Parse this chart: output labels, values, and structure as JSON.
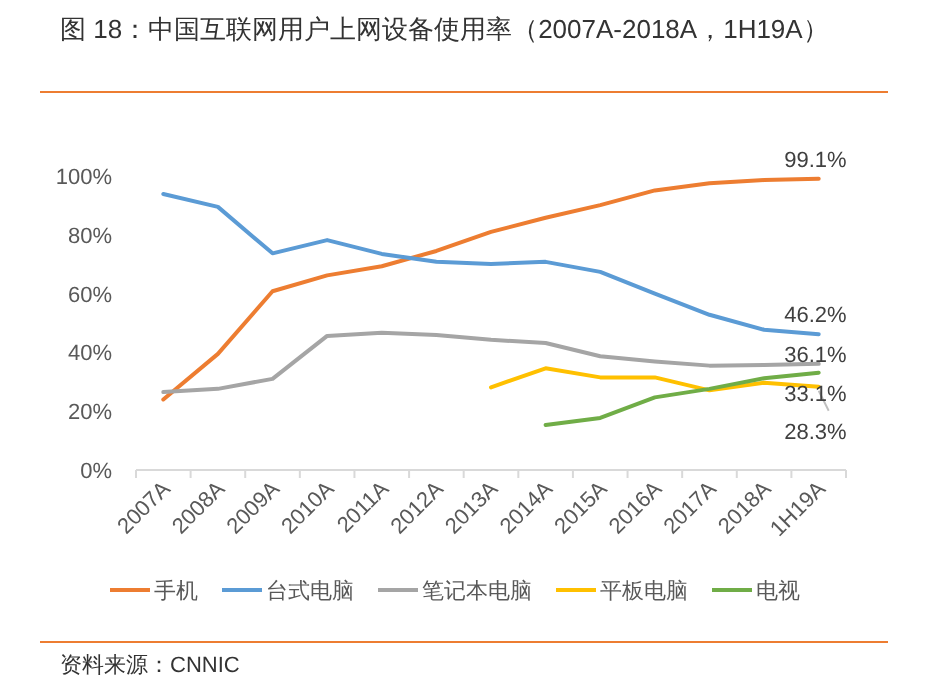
{
  "chart_data": {
    "type": "line",
    "title": "图 18：中国互联网用户上网设备使用率（2007A-2018A，1H19A）",
    "annotations": [
      "资料来源：CNNIC"
    ],
    "categories": [
      "2007A",
      "2008A",
      "2009A",
      "2010A",
      "2011A",
      "2012A",
      "2013A",
      "2014A",
      "2015A",
      "2016A",
      "2017A",
      "2018A",
      "1H19A"
    ],
    "series": [
      {
        "name": "手机",
        "color": "#ed7d31",
        "values": [
          24,
          39.5,
          60.8,
          66.2,
          69.3,
          74.5,
          81,
          85.8,
          90.1,
          95.1,
          97.5,
          98.6,
          99.1
        ],
        "value_labels": [
          null,
          null,
          null,
          null,
          null,
          null,
          null,
          null,
          null,
          null,
          null,
          null,
          "99.1%"
        ]
      },
      {
        "name": "台式电脑",
        "color": "#5b9bd5",
        "values": [
          93.9,
          89.5,
          73.7,
          78.2,
          73.5,
          70.8,
          70.1,
          70.8,
          67.4,
          60,
          52.8,
          47.7,
          46.2
        ],
        "value_labels": [
          null,
          null,
          null,
          null,
          null,
          null,
          null,
          null,
          null,
          null,
          null,
          null,
          "46.2%"
        ]
      },
      {
        "name": "笔记本电脑",
        "color": "#a5a5a5",
        "values": [
          26.5,
          27.6,
          31,
          45.6,
          46.7,
          45.9,
          44.3,
          43.2,
          38.7,
          36.9,
          35.5,
          35.7,
          36.1
        ],
        "value_labels": [
          null,
          null,
          null,
          null,
          null,
          null,
          null,
          null,
          null,
          null,
          null,
          null,
          "36.1%"
        ]
      },
      {
        "name": "平板电脑",
        "color": "#ffc000",
        "values": [
          null,
          null,
          null,
          null,
          null,
          null,
          28.1,
          34.6,
          31.5,
          31.5,
          27.1,
          29.7,
          28.3
        ],
        "value_labels": [
          null,
          null,
          null,
          null,
          null,
          null,
          null,
          null,
          null,
          null,
          null,
          null,
          "28.3%"
        ]
      },
      {
        "name": "电视",
        "color": "#70ad47",
        "values": [
          null,
          null,
          null,
          null,
          null,
          null,
          null,
          15.3,
          17.7,
          24.7,
          27.6,
          31.2,
          33.1
        ],
        "value_labels": [
          null,
          null,
          null,
          null,
          null,
          null,
          null,
          null,
          null,
          null,
          null,
          null,
          "33.1%"
        ]
      }
    ],
    "ylim": [
      0,
      100
    ],
    "yticks": [
      {
        "value": 0,
        "label": "0%"
      },
      {
        "value": 20,
        "label": "20%"
      },
      {
        "value": 40,
        "label": "40%"
      },
      {
        "value": 60,
        "label": "60%"
      },
      {
        "value": 80,
        "label": "80%"
      },
      {
        "value": 100,
        "label": "100%"
      }
    ],
    "grid": false,
    "legend": "bottom",
    "marker": "none",
    "line_style": "solid"
  }
}
